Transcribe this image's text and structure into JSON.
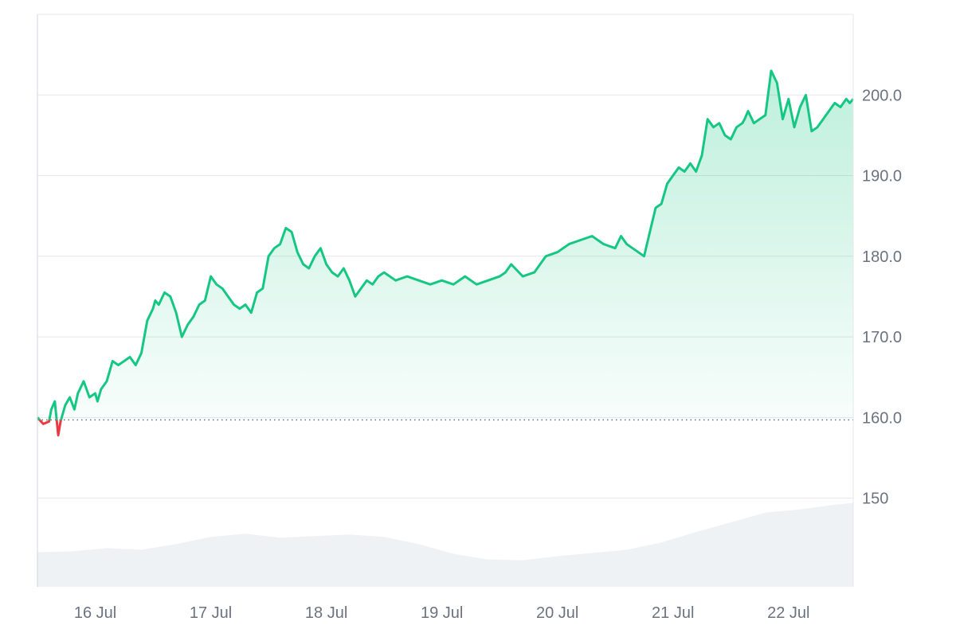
{
  "chart_data": {
    "type": "area",
    "title": "",
    "xlabel": "",
    "ylabel": "",
    "x_ticks": [
      "16 Jul",
      "17 Jul",
      "18 Jul",
      "19 Jul",
      "20 Jul",
      "21 Jul",
      "22 Jul"
    ],
    "y_ticks": [
      "150",
      "160.0",
      "170.0",
      "180.0",
      "190.0",
      "200.0"
    ],
    "ylim": [
      139,
      210
    ],
    "xlim": [
      0,
      7.06
    ],
    "baseline": 159.7,
    "grid": true,
    "colors": {
      "up": "#16c784",
      "down": "#ea3943",
      "volume": "#eff2f5"
    },
    "series": [
      {
        "x": [
          0.0,
          0.05,
          0.1,
          0.12,
          0.15,
          0.18,
          0.2,
          0.24,
          0.28,
          0.32,
          0.35,
          0.4,
          0.45,
          0.5,
          0.52,
          0.55,
          0.6,
          0.65,
          0.7,
          0.75,
          0.8,
          0.85,
          0.9,
          0.95,
          1.0,
          1.02,
          1.05,
          1.1,
          1.15,
          1.2,
          1.25,
          1.3,
          1.35,
          1.4,
          1.45,
          1.5,
          1.55,
          1.6,
          1.65,
          1.7,
          1.75,
          1.8,
          1.85,
          1.9,
          1.95,
          2.0,
          2.05,
          2.1,
          2.15,
          2.2,
          2.25,
          2.3,
          2.35,
          2.4,
          2.45,
          2.5,
          2.55,
          2.6,
          2.65,
          2.7,
          2.75,
          2.8,
          2.85,
          2.9,
          2.95,
          3.0,
          3.1,
          3.2,
          3.3,
          3.4,
          3.5,
          3.6,
          3.7,
          3.8,
          3.9,
          4.0,
          4.05,
          4.1,
          4.2,
          4.3,
          4.4,
          4.5,
          4.6,
          4.7,
          4.8,
          4.9,
          5.0,
          5.05,
          5.1,
          5.15,
          5.2,
          5.25,
          5.3,
          5.35,
          5.4,
          5.45,
          5.5,
          5.55,
          5.6,
          5.65,
          5.7,
          5.75,
          5.8,
          5.85,
          5.9,
          5.95,
          6.0,
          6.05,
          6.1,
          6.12,
          6.15,
          6.2,
          6.25,
          6.3,
          6.35,
          6.4,
          6.45,
          6.5,
          6.55,
          6.6,
          6.65,
          6.7,
          6.75,
          6.8,
          6.85,
          6.9,
          6.95,
          7.0,
          7.03,
          7.06
        ],
        "values": [
          160.0,
          159.2,
          159.5,
          161.0,
          162.0,
          157.8,
          159.5,
          161.5,
          162.5,
          161.0,
          163.0,
          164.5,
          162.5,
          163.0,
          162.0,
          163.5,
          164.5,
          167.0,
          166.5,
          167.0,
          167.5,
          166.5,
          168.0,
          172.0,
          173.5,
          174.5,
          174.0,
          175.5,
          175.0,
          173.0,
          170.0,
          171.5,
          172.5,
          174.0,
          174.5,
          177.5,
          176.5,
          176.0,
          175.0,
          174.0,
          173.5,
          174.0,
          173.0,
          175.5,
          176.0,
          180.0,
          181.0,
          181.5,
          183.5,
          183.0,
          180.5,
          179.0,
          178.5,
          180.0,
          181.0,
          179.0,
          178.0,
          177.5,
          178.5,
          177.0,
          175.0,
          176.0,
          177.0,
          176.5,
          177.5,
          178.0,
          177.0,
          177.5,
          177.0,
          176.5,
          177.0,
          176.5,
          177.5,
          176.5,
          177.0,
          177.5,
          178.0,
          179.0,
          177.5,
          178.0,
          180.0,
          180.5,
          181.5,
          182.0,
          182.5,
          181.5,
          181.0,
          182.5,
          181.5,
          181.0,
          180.5,
          180.0,
          183.0,
          186.0,
          186.5,
          189.0,
          190.0,
          191.0,
          190.5,
          191.5,
          190.5,
          192.5,
          197.0,
          196.0,
          196.5,
          195.0,
          194.5,
          196.0,
          196.5,
          197.0,
          198.0,
          196.5,
          197.0,
          197.5,
          203.0,
          201.5,
          197.0,
          199.5,
          196.0,
          198.5,
          200.0,
          195.5,
          196.0,
          197.0,
          198.0,
          199.0,
          198.5,
          199.5,
          199.0,
          199.5
        ]
      },
      {
        "name": "volume",
        "x": [
          0.0,
          0.3,
          0.6,
          0.9,
          1.2,
          1.5,
          1.8,
          2.1,
          2.4,
          2.7,
          3.0,
          3.3,
          3.6,
          3.9,
          4.2,
          4.5,
          4.8,
          5.1,
          5.4,
          5.7,
          6.0,
          6.3,
          6.6,
          6.9,
          7.06
        ],
        "values": [
          143.3,
          143.4,
          143.8,
          143.6,
          144.3,
          145.2,
          145.6,
          145.1,
          145.3,
          145.5,
          145.2,
          144.3,
          143.1,
          142.4,
          142.3,
          142.8,
          143.2,
          143.6,
          144.5,
          145.8,
          147.0,
          148.2,
          148.6,
          149.2,
          149.4
        ]
      }
    ]
  }
}
